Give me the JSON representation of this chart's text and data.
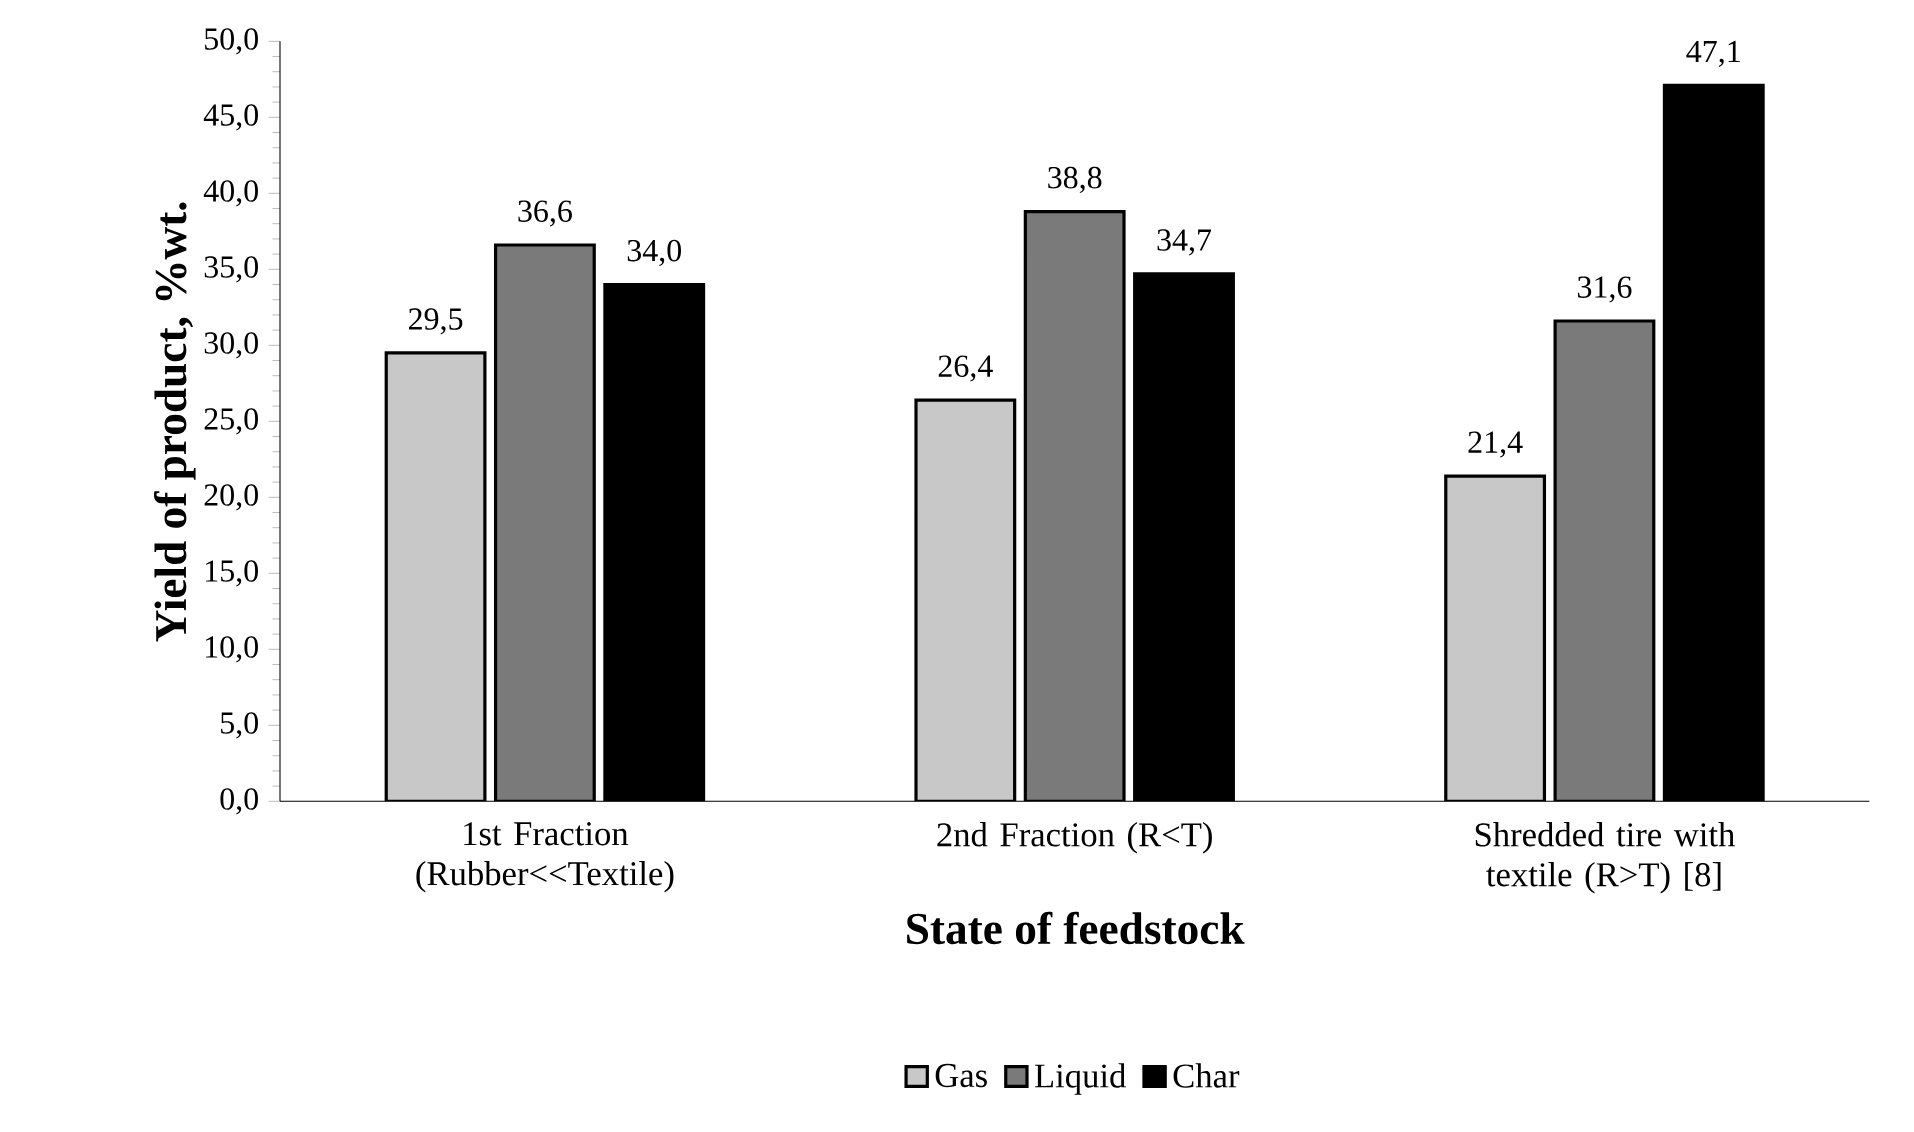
{
  "chart_data": {
    "type": "bar",
    "xlabel": "State of feedstock",
    "ylabel": "Yield of product, %wt.",
    "categories": [
      "1st Fraction (Rubber<<Textile)",
      "2nd Fraction (R<T)",
      "Shredded tire with textile (R>T) [8]"
    ],
    "series": [
      {
        "name": "Gas",
        "color": "#c8c8c8",
        "values": [
          29.5,
          26.4,
          21.4
        ],
        "value_labels": [
          "29,5",
          "26,4",
          "21,4"
        ]
      },
      {
        "name": "Liquid",
        "color": "#7a7a7a",
        "values": [
          36.6,
          38.8,
          31.6
        ],
        "value_labels": [
          "36,6",
          "38,8",
          "31,6"
        ]
      },
      {
        "name": "Char",
        "color": "#000000",
        "values": [
          34.0,
          34.7,
          47.1
        ],
        "value_labels": [
          "34,0",
          "34,7",
          "47,1"
        ]
      }
    ],
    "ylim": [
      0,
      50
    ],
    "yticks": [
      {
        "value": 0,
        "label": "0,0"
      },
      {
        "value": 5,
        "label": "5,0"
      },
      {
        "value": 10,
        "label": "10,0"
      },
      {
        "value": 15,
        "label": "15,0"
      },
      {
        "value": 20,
        "label": "20,0"
      },
      {
        "value": 25,
        "label": "25,0"
      },
      {
        "value": 30,
        "label": "30,0"
      },
      {
        "value": 35,
        "label": "35,0"
      },
      {
        "value": 40,
        "label": "40,0"
      },
      {
        "value": 45,
        "label": "45,0"
      },
      {
        "value": 50,
        "label": "50,0"
      }
    ],
    "grid": false,
    "legend": "bottom"
  }
}
